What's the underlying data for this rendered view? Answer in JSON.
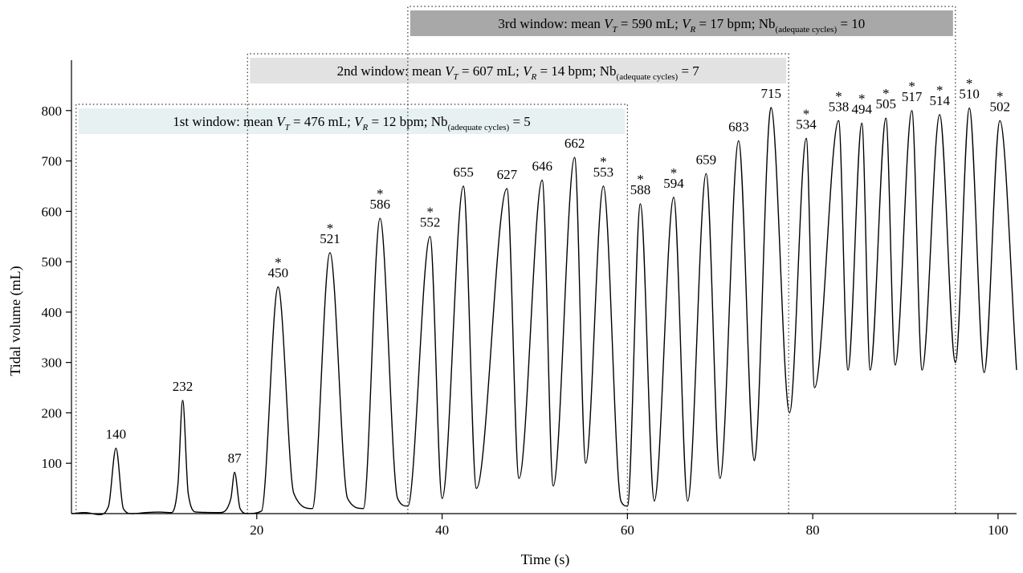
{
  "chart_data": {
    "type": "line",
    "xlabel": "Time (s)",
    "ylabel": "Tidal volume (mL)",
    "xlim": [
      0,
      102
    ],
    "ylim": [
      0,
      900
    ],
    "x_ticks": [
      20,
      40,
      60,
      80,
      100
    ],
    "y_ticks": [
      100,
      200,
      300,
      400,
      500,
      600,
      700,
      800
    ],
    "grid": false,
    "series": [
      {
        "waveform": [
          [
            0.0,
            0
          ],
          [
            1.5,
            2
          ],
          [
            3.0,
            -2
          ],
          [
            4.0,
            15
          ],
          [
            4.8,
            130
          ],
          [
            5.6,
            10
          ],
          [
            6.5,
            0
          ],
          [
            8.0,
            2
          ],
          [
            9.5,
            3
          ],
          [
            10.8,
            2
          ],
          [
            11.5,
            60
          ],
          [
            12.0,
            225
          ],
          [
            12.6,
            40
          ],
          [
            13.5,
            3
          ],
          [
            16.0,
            2
          ],
          [
            17.2,
            30
          ],
          [
            17.6,
            82
          ],
          [
            18.2,
            10
          ],
          [
            19.0,
            0
          ],
          [
            20.5,
            5
          ],
          [
            22.3,
            450
          ],
          [
            24.0,
            40
          ],
          [
            26.0,
            10
          ],
          [
            27.9,
            518
          ],
          [
            29.8,
            30
          ],
          [
            31.5,
            10
          ],
          [
            33.3,
            586
          ],
          [
            35.2,
            30
          ],
          [
            36.3,
            15
          ],
          [
            38.7,
            550
          ],
          [
            40.0,
            30
          ],
          [
            42.3,
            650
          ],
          [
            43.7,
            50
          ],
          [
            47.0,
            645
          ],
          [
            48.3,
            70
          ],
          [
            50.8,
            662
          ],
          [
            52.0,
            55
          ],
          [
            54.3,
            707
          ],
          [
            55.5,
            100
          ],
          [
            57.4,
            650
          ],
          [
            59.3,
            25
          ],
          [
            60.0,
            15
          ],
          [
            61.4,
            615
          ],
          [
            62.9,
            25
          ],
          [
            65.0,
            628
          ],
          [
            66.5,
            25
          ],
          [
            68.5,
            675
          ],
          [
            70.0,
            70
          ],
          [
            72.0,
            740
          ],
          [
            73.7,
            105
          ],
          [
            75.5,
            806
          ],
          [
            77.5,
            200
          ],
          [
            79.3,
            745
          ],
          [
            80.2,
            250
          ],
          [
            82.8,
            780
          ],
          [
            83.8,
            285
          ],
          [
            85.3,
            775
          ],
          [
            86.2,
            285
          ],
          [
            87.9,
            785
          ],
          [
            88.9,
            295
          ],
          [
            90.7,
            800
          ],
          [
            91.8,
            285
          ],
          [
            93.7,
            792
          ],
          [
            95.4,
            300
          ],
          [
            96.9,
            805
          ],
          [
            98.5,
            280
          ],
          [
            100.2,
            780
          ],
          [
            102.0,
            285
          ]
        ]
      }
    ],
    "peaks": [
      {
        "t": 4.8,
        "label": "140",
        "star": false
      },
      {
        "t": 12.0,
        "label": "232",
        "star": false
      },
      {
        "t": 17.6,
        "label": "87",
        "star": false
      },
      {
        "t": 22.3,
        "label": "450",
        "star": true
      },
      {
        "t": 27.9,
        "label": "521",
        "star": true
      },
      {
        "t": 33.3,
        "label": "586",
        "star": true
      },
      {
        "t": 38.7,
        "label": "552",
        "star": true
      },
      {
        "t": 42.3,
        "label": "655",
        "star": false
      },
      {
        "t": 47.0,
        "label": "627",
        "star": false
      },
      {
        "t": 50.8,
        "label": "646",
        "star": false
      },
      {
        "t": 54.3,
        "label": "662",
        "star": false
      },
      {
        "t": 57.4,
        "label": "553",
        "star": true
      },
      {
        "t": 61.4,
        "label": "588",
        "star": true
      },
      {
        "t": 65.0,
        "label": "594",
        "star": true
      },
      {
        "t": 68.5,
        "label": "659",
        "star": false
      },
      {
        "t": 72.0,
        "label": "683",
        "star": false
      },
      {
        "t": 75.5,
        "label": "715",
        "star": false
      },
      {
        "t": 79.3,
        "label": "534",
        "star": true
      },
      {
        "t": 82.8,
        "label": "538",
        "star": true
      },
      {
        "t": 85.3,
        "label": "494",
        "star": true
      },
      {
        "t": 87.9,
        "label": "505",
        "star": true
      },
      {
        "t": 90.7,
        "label": "517",
        "star": true
      },
      {
        "t": 93.7,
        "label": "514",
        "star": true
      },
      {
        "t": 96.9,
        "label": "510",
        "star": true
      },
      {
        "t": 100.2,
        "label": "502",
        "star": true
      }
    ],
    "windows": [
      {
        "t_start": 0.5,
        "t_end": 60.0,
        "parts": [
          "1st window: mean ",
          "V",
          "T",
          " = 476 mL; ",
          "V",
          "R",
          " = 12 bpm; Nb",
          "(adequate cycles)",
          " = 5"
        ],
        "fill": "#e8f1f2"
      },
      {
        "t_start": 19.0,
        "t_end": 77.4,
        "parts": [
          "2nd window: mean ",
          "V",
          "T",
          " = 607 mL; ",
          "V",
          "R",
          " = 14 bpm; Nb",
          "(adequate cycles)",
          " = 7"
        ],
        "fill": "#e2e2e2"
      },
      {
        "t_start": 36.3,
        "t_end": 95.4,
        "parts": [
          "3rd window: mean ",
          "V",
          "T",
          " = 590 mL; ",
          "V",
          "R",
          " = 17 bpm; Nb",
          "(adequate cycles)",
          " = 10"
        ],
        "fill": "#a8a8a8"
      }
    ]
  }
}
